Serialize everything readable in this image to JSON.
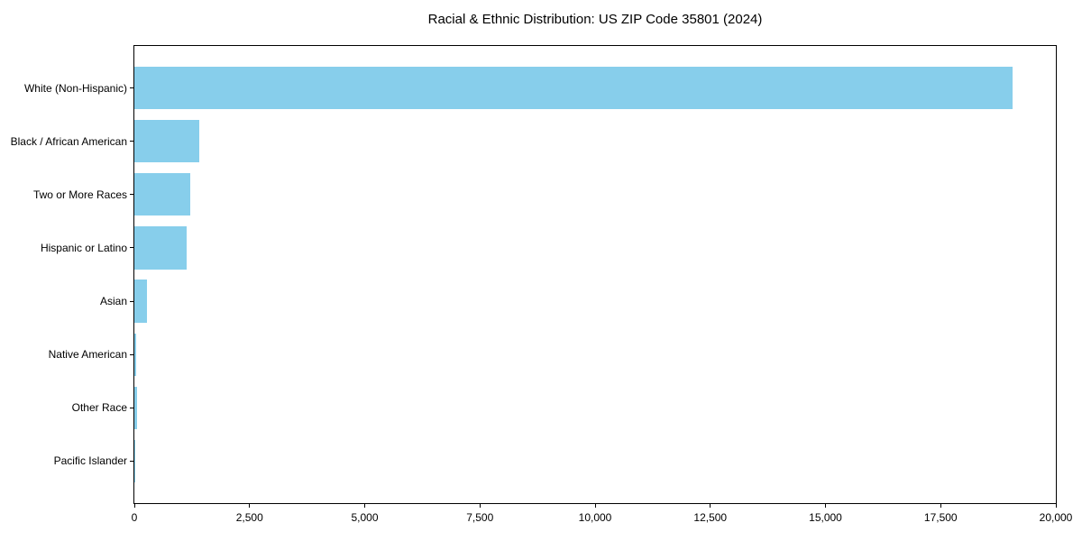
{
  "chart_data": {
    "type": "bar",
    "orientation": "horizontal",
    "title": "Racial & Ethnic Distribution: US ZIP Code 35801 (2024)",
    "categories": [
      "White (Non-Hispanic)",
      "Black / African American",
      "Two or More Races",
      "Hispanic or Latino",
      "Asian",
      "Native American",
      "Other Race",
      "Pacific Islander"
    ],
    "values": [
      19060,
      1400,
      1210,
      1130,
      280,
      45,
      60,
      10
    ],
    "xlabel": "",
    "ylabel": "",
    "xlim": [
      0,
      20000
    ],
    "x_tick_labels": [
      "0",
      "2,500",
      "5,000",
      "7,500",
      "10,000",
      "12,500",
      "15,000",
      "17,500",
      "20,000"
    ],
    "grid": false,
    "legend_position": "none",
    "bar_color": "#87CEEB",
    "axis_color": "#000000",
    "text_color": "#000000",
    "background_color": "#FFFFFF"
  }
}
